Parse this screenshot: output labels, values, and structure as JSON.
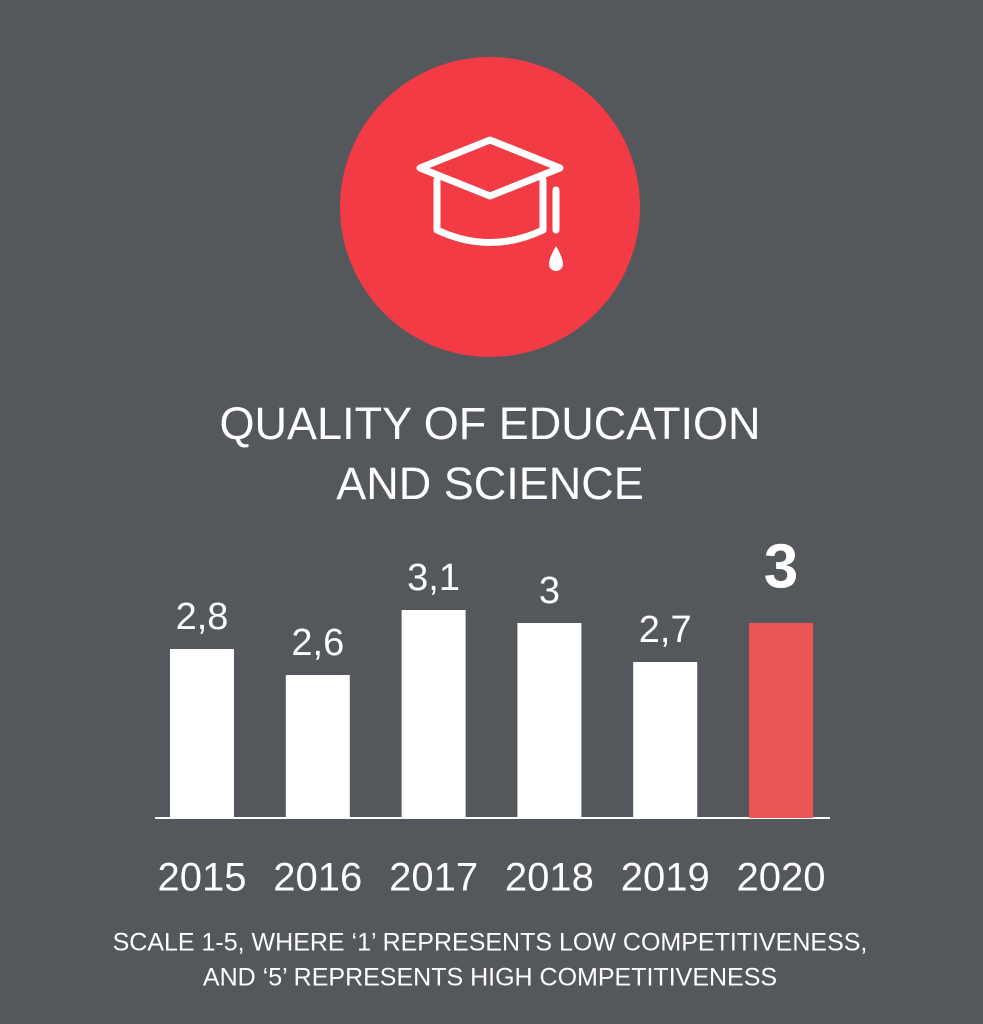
{
  "chart_data": {
    "type": "bar",
    "title": [
      "QUALITY OF EDUCATION",
      "AND SCIENCE"
    ],
    "categories": [
      "2015",
      "2016",
      "2017",
      "2018",
      "2019",
      "2020"
    ],
    "values": [
      2.8,
      2.6,
      3.1,
      3,
      2.7,
      3
    ],
    "value_labels": [
      "2,8",
      "2,6",
      "3,1",
      "3",
      "2,7",
      "3"
    ],
    "colors": [
      "#ffffff",
      "#ffffff",
      "#ffffff",
      "#ffffff",
      "#ffffff",
      "#ec5656"
    ],
    "ylim": [
      1.5,
      3.5
    ],
    "note": [
      "SCALE 1-5, WHERE ‘1’ REPRESENTS LOW COMPETITIVENESS,",
      "AND ‘5’ REPRESENTS HIGH COMPETITIVENESS"
    ]
  }
}
